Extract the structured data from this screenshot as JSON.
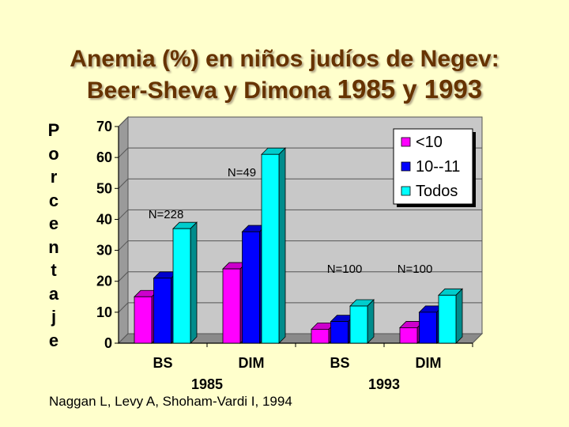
{
  "slide": {
    "title_line1": "Anemia (%) en niños judíos de Negev:",
    "title_line2_text": "Beer-Sheva y Dimona ",
    "title_line2_years": "1985 y 1993",
    "ylabel_letters": [
      "P",
      "o",
      "r",
      "c",
      "e",
      "n",
      "t",
      "a",
      "j",
      "e"
    ],
    "source": "Naggan L, Levy A, Shoham-Vardi I, 1994"
  },
  "chart_data": {
    "type": "bar",
    "title": "Anemia (%) en niños judíos de Negev: Beer-Sheva y Dimona 1985 y 1993",
    "ylabel": "Porcentaje",
    "ylim": [
      0,
      70
    ],
    "yticks": [
      0,
      10,
      20,
      30,
      40,
      50,
      60,
      70
    ],
    "grid": true,
    "legend_position": "top-right",
    "categories": [
      "BS",
      "DIM",
      "BS",
      "DIM"
    ],
    "groups": [
      {
        "label": "1985",
        "categories": [
          "BS",
          "DIM"
        ]
      },
      {
        "label": "1993",
        "categories": [
          "BS",
          "DIM"
        ]
      }
    ],
    "series": [
      {
        "name": "<10",
        "color": "#ff00ff",
        "values": [
          15,
          24,
          4.5,
          5
        ]
      },
      {
        "name": "10--11",
        "color": "#0000ff",
        "values": [
          21,
          36,
          7,
          10
        ]
      },
      {
        "name": "Todos",
        "color": "#00ffff",
        "values": [
          37,
          61,
          12,
          15.5
        ]
      }
    ],
    "annotations": [
      {
        "text": "N=228",
        "category_index": 0
      },
      {
        "text": "N=49",
        "category_index": 1
      },
      {
        "text": "N=100",
        "category_index": 2
      },
      {
        "text": "N=100",
        "category_index": 3
      }
    ]
  }
}
